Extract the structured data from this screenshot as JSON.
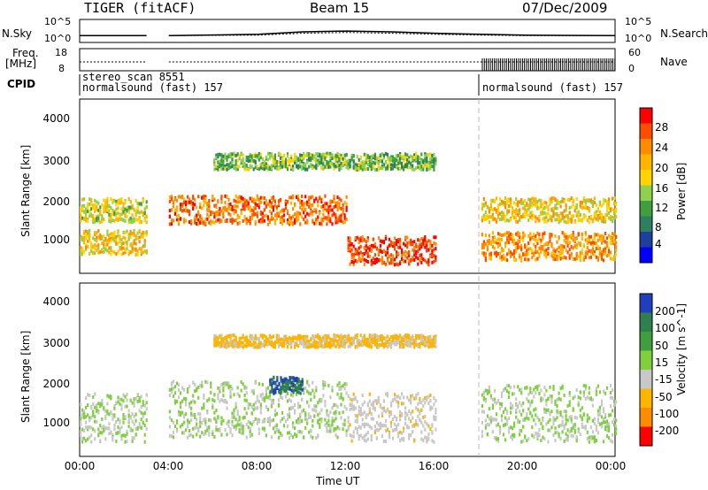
{
  "header": {
    "radar": "TIGER (fitACF)",
    "beam": "Beam 15",
    "date": "07/Dec/2009"
  },
  "nsky_panel": {
    "label": "N.Sky",
    "right_label": "N.Search",
    "left_ticks": [
      "10^5",
      "10^0"
    ],
    "right_ticks": [
      "10^5",
      "10^0"
    ]
  },
  "freq_panel": {
    "label_line1": "Freq.",
    "label_line2": "[MHz]",
    "right_label": "Nave",
    "left_ticks": [
      "18",
      "8"
    ],
    "right_ticks": [
      "60",
      "0"
    ]
  },
  "cpid_panel": {
    "label": "CPID",
    "entries": [
      {
        "line1": "stereo_scan 8551",
        "line2": "normalsound (fast) 157"
      },
      {
        "line1": "",
        "line2": "normalsound (fast) 157"
      }
    ]
  },
  "x_axis": {
    "label": "Time UT",
    "ticks": [
      "00:00",
      "04:00",
      "08:00",
      "12:00",
      "16:00",
      "20:00",
      "00:00"
    ]
  },
  "power_panel": {
    "ylabel": "Slant Range [km]",
    "yticks": [
      "4000",
      "3000",
      "2000",
      "1000"
    ],
    "colorbar_label": "Power [dB]",
    "colorbar_ticks": [
      "28",
      "24",
      "20",
      "16",
      "12",
      "8",
      "4"
    ],
    "colors": [
      "#ff0000",
      "#ff4d00",
      "#ff8c00",
      "#ffb400",
      "#ffd400",
      "#8fd14f",
      "#3f9f3f",
      "#2d7f5f",
      "#1f3fa0",
      "#0000ff"
    ]
  },
  "velocity_panel": {
    "ylabel": "Slant Range [km]",
    "yticks": [
      "4000",
      "3000",
      "2000",
      "1000"
    ],
    "colorbar_label": "Velocity [m s^-1]",
    "colorbar_ticks": [
      "200",
      "100",
      "50",
      "15",
      "-15",
      "-50",
      "-100",
      "-200"
    ],
    "colors": [
      "#1f3fbf",
      "#2f7f4f",
      "#3f9f3f",
      "#7fcf3f",
      "#c8c8c8",
      "#ffb400",
      "#ff8c00",
      "#ff0000"
    ]
  },
  "chart_data": [
    {
      "type": "line",
      "x_label": "Time UT",
      "x_range_hours": [
        0,
        24
      ],
      "y_scale": "log",
      "ylim": [
        1,
        100000
      ],
      "series": [
        {
          "name": "N.Sky",
          "x": [
            0,
            3,
            3.3,
            4,
            8,
            10,
            12,
            14,
            16,
            18,
            20,
            24
          ],
          "y": [
            30,
            30,
            null,
            30,
            60,
            200,
            300,
            200,
            100,
            60,
            40,
            30
          ]
        },
        {
          "name": "N.Search",
          "x": [
            0,
            3,
            3.3,
            4,
            8,
            10,
            12,
            14,
            16,
            18,
            20,
            24
          ],
          "y": [
            30,
            30,
            null,
            30,
            40,
            100,
            150,
            100,
            60,
            40,
            30,
            30
          ]
        }
      ]
    },
    {
      "type": "line",
      "x_range_hours": [
        0,
        24
      ],
      "ylim": [
        8,
        18
      ],
      "series": [
        {
          "name": "Freq.",
          "x": [
            0,
            3,
            3.3,
            4,
            18,
            24
          ],
          "y": [
            12,
            12,
            null,
            12,
            12,
            12
          ]
        },
        {
          "name": "Nave",
          "x": [
            0,
            18,
            18.1,
            24
          ],
          "y": [
            2,
            2,
            40,
            40
          ]
        }
      ]
    },
    {
      "type": "heatmap",
      "title": "Power",
      "y_label": "Slant Range [km]",
      "x_range_hours": [
        0,
        24
      ],
      "ylim": [
        200,
        4500
      ],
      "colorbar_range": [
        0,
        30
      ],
      "scatter_bands": [
        {
          "start": 0,
          "end": 3,
          "center": 1800,
          "width": 300,
          "power": 16
        },
        {
          "start": 0,
          "end": 3,
          "center": 1000,
          "width": 300,
          "power": 18
        },
        {
          "start": 4,
          "end": 12,
          "center": 1800,
          "width": 350,
          "power": 24
        },
        {
          "start": 12,
          "end": 16,
          "center": 800,
          "width": 350,
          "power": 26
        },
        {
          "start": 6,
          "end": 16,
          "center": 3000,
          "width": 200,
          "power": 12
        },
        {
          "start": 18,
          "end": 24,
          "center": 1800,
          "width": 300,
          "power": 18
        },
        {
          "start": 18,
          "end": 24,
          "center": 900,
          "width": 350,
          "power": 22
        }
      ]
    },
    {
      "type": "heatmap",
      "title": "Velocity",
      "y_label": "Slant Range [km]",
      "x_range_hours": [
        0,
        24
      ],
      "ylim": [
        200,
        4500
      ],
      "colorbar_range": [
        -200,
        200
      ],
      "scatter_bands": [
        {
          "start": 0,
          "end": 3,
          "center": 1200,
          "width": 600,
          "velocity": 0
        },
        {
          "start": 4,
          "end": 12,
          "center": 1400,
          "width": 700,
          "velocity": 0
        },
        {
          "start": 8.5,
          "end": 10,
          "center": 2000,
          "width": 200,
          "velocity": 150
        },
        {
          "start": 12,
          "end": 16,
          "center": 1200,
          "width": 600,
          "velocity": -30
        },
        {
          "start": 6,
          "end": 16,
          "center": 3100,
          "width": 150,
          "velocity": -60
        },
        {
          "start": 18,
          "end": 24,
          "center": 1300,
          "width": 700,
          "velocity": 0
        }
      ]
    }
  ]
}
